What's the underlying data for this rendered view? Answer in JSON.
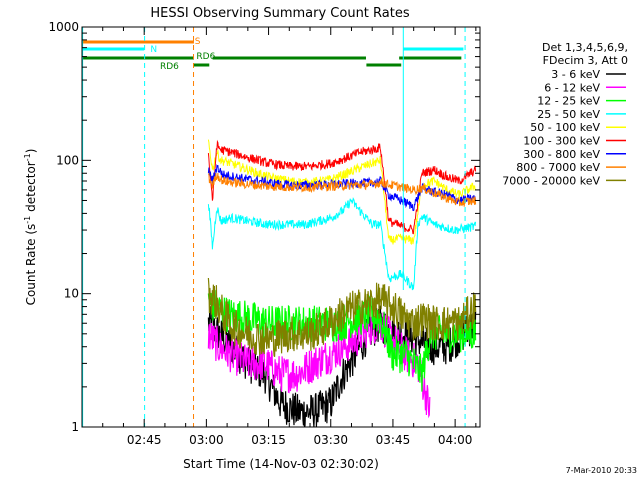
{
  "chart_data": {
    "type": "line",
    "title": "HESSI Observing Summary Count Rates",
    "xlabel": "Start Time (14-Nov-03 02:30:02)",
    "ylabel_main": "Count Rate (s",
    "ylabel_sup1": "-1",
    "ylabel_mid": " detector",
    "ylabel_sup2": "-1",
    "ylabel_end": ")",
    "y_scale": "log",
    "ylim": [
      1,
      1000
    ],
    "xlim_minutes": [
      0,
      96
    ],
    "x_ticks": [
      {
        "minute": 15,
        "label": "02:45"
      },
      {
        "minute": 30,
        "label": "03:00"
      },
      {
        "minute": 45,
        "label": "03:15"
      },
      {
        "minute": 60,
        "label": "03:30"
      },
      {
        "minute": 75,
        "label": "03:45"
      },
      {
        "minute": 90,
        "label": "04:00"
      }
    ],
    "y_ticks": [
      {
        "value": 1,
        "label": "1"
      },
      {
        "value": 10,
        "label": "10"
      },
      {
        "value": 100,
        "label": "100"
      },
      {
        "value": 1000,
        "label": "1000"
      }
    ],
    "legend_header": [
      "Det 1,3,4,5,6,9,",
      "FDecim 3, Att 0"
    ],
    "legend_position": "right",
    "footer_date": "7-Mar-2010 20:33",
    "flags": [
      {
        "label": "S",
        "color": "#ff8000"
      },
      {
        "label": "N",
        "color": "#00ffff"
      },
      {
        "label": "RD6",
        "color": "#008000"
      },
      {
        "label": "RD6",
        "color": "#008000"
      }
    ],
    "series": [
      {
        "name": "3 - 6 keV",
        "color": "#000000",
        "x": [
          30.5,
          33,
          36,
          40,
          44,
          48,
          52,
          56,
          60,
          63,
          66,
          69,
          72,
          75,
          78,
          81,
          84,
          88,
          92,
          95
        ],
        "y": [
          6,
          5,
          4,
          3,
          2.5,
          1.5,
          1.3,
          1.3,
          1.5,
          2.5,
          3.5,
          5,
          6,
          5,
          5,
          4.5,
          4,
          4,
          5,
          6
        ]
      },
      {
        "name": "6 - 12 keV",
        "color": "#ff00ff",
        "x": [
          30.5,
          33,
          36,
          40,
          44,
          48,
          52,
          56,
          60,
          63,
          66,
          69,
          72,
          75,
          78,
          81,
          84
        ],
        "y": [
          5,
          4,
          3.5,
          3,
          3,
          2.5,
          2.5,
          3,
          3.5,
          4,
          4.5,
          5.5,
          6,
          4.5,
          3.5,
          3,
          1.3
        ]
      },
      {
        "name": "12 - 25 keV",
        "color": "#00ff00",
        "x": [
          30.5,
          32,
          35,
          40,
          45,
          50,
          55,
          58,
          62,
          66,
          70,
          72,
          75,
          78,
          80,
          82,
          84,
          86,
          90,
          95
        ],
        "y": [
          9,
          8,
          7,
          6.5,
          6,
          6,
          6,
          6,
          6,
          6.5,
          7,
          6.5,
          3.5,
          3.5,
          3,
          2.5,
          5,
          5,
          5,
          5
        ]
      },
      {
        "name": "25 - 50 keV",
        "color": "#00ffff",
        "x": [
          30.5,
          31.5,
          32.5,
          33.5,
          36,
          40,
          45,
          50,
          54,
          57,
          60,
          63,
          65,
          67,
          70,
          72,
          74,
          77,
          79,
          80,
          81,
          82,
          85,
          90,
          95
        ],
        "y": [
          50,
          22,
          45,
          35,
          37,
          35,
          33,
          33,
          33,
          35,
          37,
          42,
          50,
          42,
          33,
          33,
          13,
          14,
          12,
          11,
          33,
          38,
          33,
          30,
          32
        ]
      },
      {
        "name": "50 - 100 keV",
        "color": "#ffff00",
        "x": [
          30.5,
          31.5,
          32.5,
          33.5,
          36,
          40,
          45,
          50,
          55,
          60,
          64,
          67,
          70,
          72,
          74,
          77,
          80,
          82,
          85,
          88,
          91,
          95
        ],
        "y": [
          140,
          85,
          115,
          100,
          95,
          85,
          75,
          70,
          68,
          72,
          80,
          88,
          95,
          100,
          25,
          26,
          25,
          65,
          70,
          60,
          55,
          65
        ]
      },
      {
        "name": "100 - 300 keV",
        "color": "#ff0000",
        "x": [
          30.5,
          31.5,
          32.5,
          33.5,
          36,
          40,
          45,
          50,
          55,
          60,
          64,
          67,
          70,
          72,
          74,
          77,
          80,
          82,
          85,
          88,
          91,
          95
        ],
        "y": [
          110,
          50,
          130,
          120,
          115,
          105,
          95,
          90,
          90,
          95,
          105,
          115,
          120,
          125,
          35,
          32,
          30,
          80,
          85,
          75,
          70,
          85
        ]
      },
      {
        "name": "300 - 800 keV",
        "color": "#0000ff",
        "x": [
          30.5,
          31.5,
          32.5,
          34,
          37,
          40,
          45,
          50,
          55,
          60,
          65,
          70,
          72,
          74,
          77,
          80,
          82,
          85,
          88,
          91,
          95
        ],
        "y": [
          85,
          70,
          90,
          78,
          75,
          72,
          68,
          65,
          65,
          66,
          67,
          68,
          70,
          55,
          50,
          45,
          62,
          58,
          55,
          50,
          52
        ]
      },
      {
        "name": "800 - 7000 keV",
        "color": "#ff8000",
        "x": [
          30.5,
          31.5,
          32.5,
          34,
          37,
          40,
          45,
          50,
          55,
          60,
          65,
          70,
          72,
          74,
          77,
          80,
          82,
          85,
          88,
          91,
          95
        ],
        "y": [
          75,
          65,
          78,
          70,
          68,
          66,
          64,
          63,
          63,
          64,
          65,
          66,
          68,
          66,
          63,
          60,
          62,
          57,
          52,
          48,
          50
        ]
      },
      {
        "name": "7000 - 20000 keV",
        "color": "#808000",
        "x": [
          30.5,
          32,
          34,
          37,
          40,
          45,
          50,
          55,
          58,
          61,
          64,
          67,
          70,
          72,
          75,
          78,
          80,
          82,
          85,
          88,
          91,
          95
        ],
        "y": [
          10,
          9,
          7,
          5.5,
          5,
          4.5,
          5,
          5,
          5.5,
          6.5,
          7.5,
          8,
          8.5,
          9,
          8,
          6.5,
          6,
          6.5,
          6,
          6,
          6,
          8
        ]
      }
    ]
  }
}
